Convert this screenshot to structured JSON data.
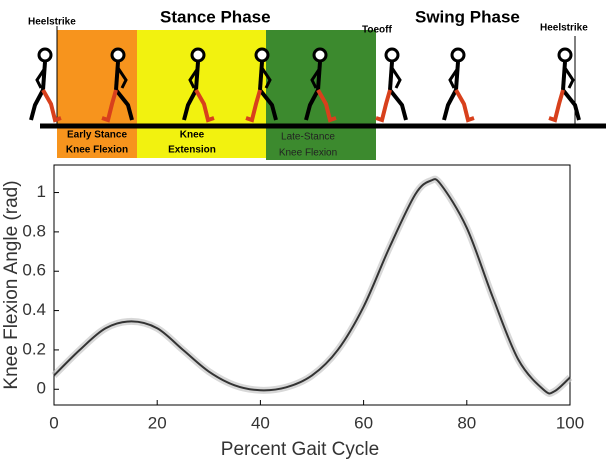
{
  "diagram": {
    "events": [
      "Heelstrike",
      "Toeoff",
      "Heelstrike"
    ],
    "phases": [
      "Stance Phase",
      "Swing Phase"
    ],
    "subphases": [
      {
        "line1": "Early Stance",
        "line2": "Knee Flexion"
      },
      {
        "line1": "Knee",
        "line2": "Extension"
      },
      {
        "line1": "Late-Stance",
        "line2": "Knee Flexion"
      }
    ]
  },
  "chart_data": {
    "type": "line",
    "x_label": "Percent Gait Cycle",
    "y_label": "Knee Flexion Angle (rad)",
    "x": [
      0,
      5,
      10,
      15,
      20,
      25,
      30,
      35,
      40,
      45,
      50,
      55,
      60,
      65,
      70,
      73,
      75,
      80,
      85,
      90,
      95,
      97,
      100
    ],
    "values": [
      0.07,
      0.2,
      0.31,
      0.345,
      0.31,
      0.2,
      0.09,
      0.02,
      -0.005,
      0.01,
      0.07,
      0.2,
      0.42,
      0.72,
      0.99,
      1.06,
      1.04,
      0.82,
      0.47,
      0.15,
      -0.005,
      -0.01,
      0.06
    ],
    "color": "#333333",
    "xlim": [
      0,
      100
    ],
    "ylim": [
      -0.08,
      1.14
    ],
    "xticks": [
      0,
      20,
      40,
      60,
      80,
      100
    ],
    "yticks": [
      0,
      0.2,
      0.4,
      0.6,
      0.8,
      1
    ]
  }
}
